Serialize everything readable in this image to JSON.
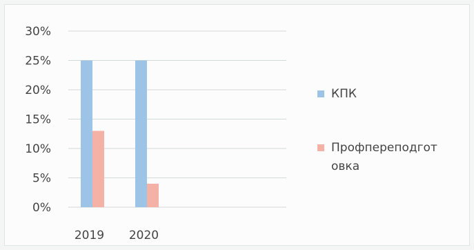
{
  "chart_data": {
    "type": "bar",
    "categories": [
      "2019",
      "2020"
    ],
    "series": [
      {
        "name": "КПК",
        "values": [
          25,
          25
        ],
        "color": "#9dc3e6"
      },
      {
        "name": "Профпереподготовка",
        "legend_lines": [
          "Профпереподгот",
          "овка"
        ],
        "values": [
          13,
          4
        ],
        "color": "#f4b2a6"
      }
    ],
    "ylim": [
      0,
      30
    ],
    "yticks": [
      "0%",
      "5%",
      "10%",
      "15%",
      "20%",
      "25%",
      "30%"
    ],
    "grid": true,
    "legend_position": "right"
  }
}
